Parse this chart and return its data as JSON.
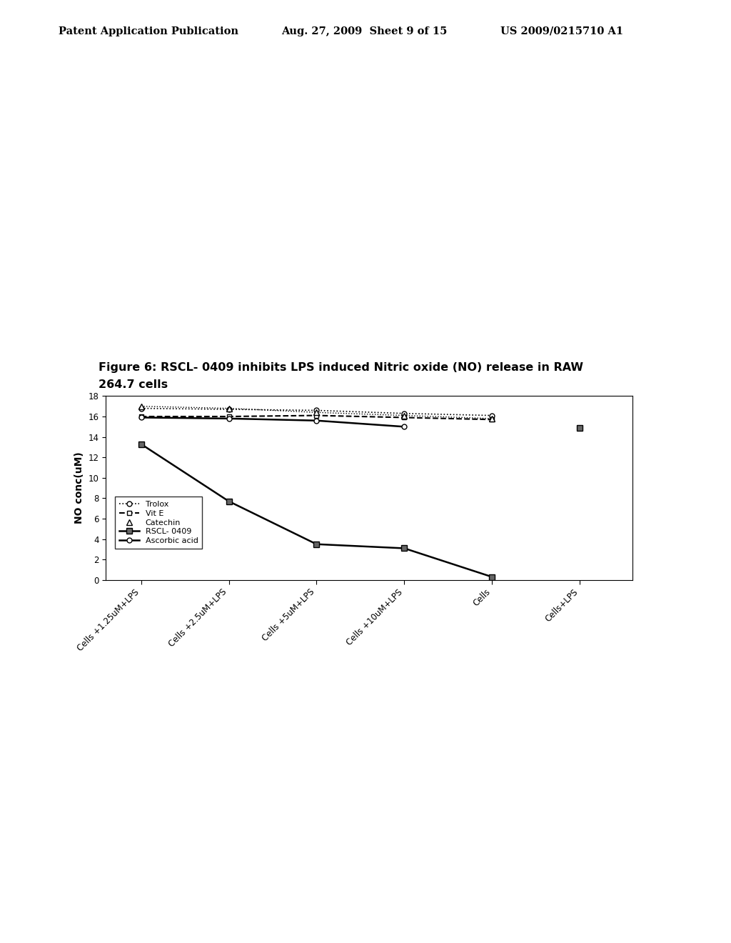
{
  "title_line1": "Figure 6: RSCL- 0409 inhibits LPS induced Nitric oxide (NO) release in RAW",
  "title_line2": "264.7 cells",
  "ylabel": "NO conc(uM)",
  "header_left": "Patent Application Publication",
  "header_center": "Aug. 27, 2009  Sheet 9 of 15",
  "header_right": "US 2009/0215710 A1",
  "x_labels": [
    "Cells +1.25uM+LPS",
    "Cells +2.5uM+LPS",
    "Cells +5uM+LPS",
    "Cells +10uM+LPS",
    "Cells",
    "Cells+LPS"
  ],
  "ylim": [
    0,
    18
  ],
  "yticks": [
    0,
    2,
    4,
    6,
    8,
    10,
    12,
    14,
    16,
    18
  ],
  "series": {
    "Trolox": {
      "values": [
        16.8,
        16.7,
        16.6,
        16.3,
        16.1,
        null
      ],
      "color": "#000000",
      "linestyle": "dotted",
      "marker": "o",
      "markerfacecolor": "white",
      "markersize": 5,
      "linewidth": 1.2
    },
    "Vit E": {
      "values": [
        16.0,
        16.0,
        16.1,
        15.9,
        15.7,
        null
      ],
      "color": "#000000",
      "linestyle": "--",
      "marker": "s",
      "markerfacecolor": "white",
      "markersize": 5,
      "linewidth": 1.5
    },
    "Catechin": {
      "values": [
        17.0,
        16.8,
        16.4,
        16.1,
        15.8,
        null
      ],
      "color": "#000000",
      "linestyle": "dotted",
      "marker": "^",
      "markerfacecolor": "white",
      "markersize": 6,
      "linewidth": 1.0
    },
    "RSCL-0409": {
      "values": [
        13.3,
        7.7,
        3.5,
        3.1,
        0.3,
        14.9
      ],
      "color": "#000000",
      "linestyle": "-",
      "marker": "s",
      "markerfacecolor": "#666666",
      "markersize": 6,
      "linewidth": 1.8
    },
    "Ascorbic acid": {
      "values": [
        15.9,
        15.8,
        15.6,
        15.0,
        null,
        null
      ],
      "color": "#000000",
      "linestyle": "-",
      "marker": "o",
      "markerfacecolor": "white",
      "markersize": 5,
      "linewidth": 1.8
    }
  }
}
